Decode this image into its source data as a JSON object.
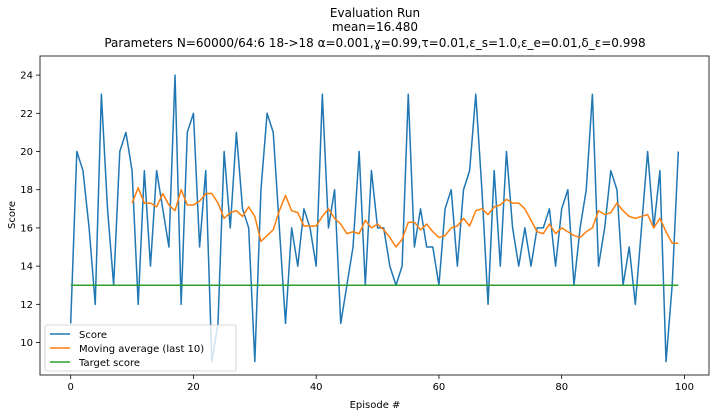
{
  "chart_data": {
    "type": "line",
    "title": "Evaluation Run",
    "subtitle_lines": [
      "mean=16.480",
      "Parameters N=60000/64:6 18->18 α=0.001,ɣ=0.99,τ=0.01,ε_s=1.0,ε_e=0.01,δ_ε=0.998"
    ],
    "xlabel": "Episode #",
    "ylabel": "Score",
    "xlim": [
      -5,
      104
    ],
    "ylim": [
      8.3,
      25
    ],
    "xticks": [
      0,
      20,
      40,
      60,
      80,
      100
    ],
    "yticks": [
      10,
      12,
      14,
      16,
      18,
      20,
      22,
      24
    ],
    "grid": false,
    "legend_position": "lower-left",
    "series": [
      {
        "name": "Score",
        "color": "#1f77b4",
        "x": [
          0,
          1,
          2,
          3,
          4,
          5,
          6,
          7,
          8,
          9,
          10,
          11,
          12,
          13,
          14,
          15,
          16,
          17,
          18,
          19,
          20,
          21,
          22,
          23,
          24,
          25,
          26,
          27,
          28,
          29,
          30,
          31,
          32,
          33,
          34,
          35,
          36,
          37,
          38,
          39,
          40,
          41,
          42,
          43,
          44,
          45,
          46,
          47,
          48,
          49,
          50,
          51,
          52,
          53,
          54,
          55,
          56,
          57,
          58,
          59,
          60,
          61,
          62,
          63,
          64,
          65,
          66,
          67,
          68,
          69,
          70,
          71,
          72,
          73,
          74,
          75,
          76,
          77,
          78,
          79,
          80,
          81,
          82,
          83,
          84,
          85,
          86,
          87,
          88,
          89,
          90,
          91,
          92,
          93,
          94,
          95,
          96,
          97,
          98,
          99
        ],
        "values": [
          11,
          20,
          19,
          16,
          12,
          23,
          17,
          13,
          20,
          21,
          19,
          12,
          19,
          14,
          19,
          17,
          15,
          24,
          12,
          21,
          22,
          15,
          19,
          9,
          11,
          20,
          16,
          21,
          17,
          16,
          9,
          18,
          22,
          21,
          16,
          11,
          16,
          14,
          17,
          16,
          14,
          23,
          16,
          18,
          11,
          13,
          15,
          20,
          13,
          19,
          16,
          16,
          14,
          13,
          14,
          23,
          15,
          17,
          15,
          15,
          13,
          17,
          18,
          14,
          18,
          19,
          23,
          18,
          12,
          19,
          14,
          20,
          16,
          14,
          16,
          14,
          16,
          16,
          17,
          14,
          17,
          18,
          13,
          16,
          18,
          23,
          14,
          16,
          19,
          18,
          13,
          15,
          12,
          16,
          20,
          16,
          19,
          9,
          13,
          20
        ]
      },
      {
        "name": "Moving average (last 10)",
        "color": "#ff7f0e",
        "x": [
          10,
          11,
          12,
          13,
          14,
          15,
          16,
          17,
          18,
          19,
          20,
          21,
          22,
          23,
          24,
          25,
          26,
          27,
          28,
          29,
          30,
          31,
          32,
          33,
          34,
          35,
          36,
          37,
          38,
          39,
          40,
          41,
          42,
          43,
          44,
          45,
          46,
          47,
          48,
          49,
          50,
          51,
          52,
          53,
          54,
          55,
          56,
          57,
          58,
          59,
          60,
          61,
          62,
          63,
          64,
          65,
          66,
          67,
          68,
          69,
          70,
          71,
          72,
          73,
          74,
          75,
          76,
          77,
          78,
          79,
          80,
          81,
          82,
          83,
          84,
          85,
          86,
          87,
          88,
          89,
          90,
          91,
          92,
          93,
          94,
          95,
          96,
          97,
          98,
          99
        ],
        "values": [
          17.3,
          18.1,
          17.3,
          17.3,
          17.1,
          17.8,
          17.2,
          16.9,
          18.0,
          17.2,
          17.2,
          17.4,
          17.8,
          17.8,
          17.3,
          16.5,
          16.8,
          16.9,
          16.6,
          17.1,
          16.6,
          15.3,
          15.6,
          15.9,
          16.9,
          17.7,
          16.9,
          16.8,
          16.1,
          16.1,
          16.1,
          16.6,
          17.0,
          16.5,
          16.2,
          15.7,
          15.8,
          15.7,
          16.4,
          16.0,
          16.2,
          15.9,
          15.5,
          15.0,
          15.4,
          16.3,
          16.3,
          15.9,
          16.2,
          15.8,
          15.5,
          15.6,
          16.0,
          16.1,
          16.5,
          16.1,
          16.9,
          17.0,
          16.7,
          17.1,
          17.2,
          17.5,
          17.3,
          17.3,
          17.0,
          16.4,
          15.8,
          15.7,
          16.2,
          15.7,
          16.0,
          15.8,
          15.6,
          15.5,
          15.8,
          16.0,
          16.9,
          16.7,
          16.8,
          17.3,
          16.9,
          16.6,
          16.5,
          16.6,
          16.7,
          16.0,
          16.5,
          15.8,
          15.2,
          15.2
        ]
      },
      {
        "name": "Target score",
        "color": "#2ca02c",
        "x": [
          0,
          99
        ],
        "values": [
          13,
          13
        ]
      }
    ]
  }
}
